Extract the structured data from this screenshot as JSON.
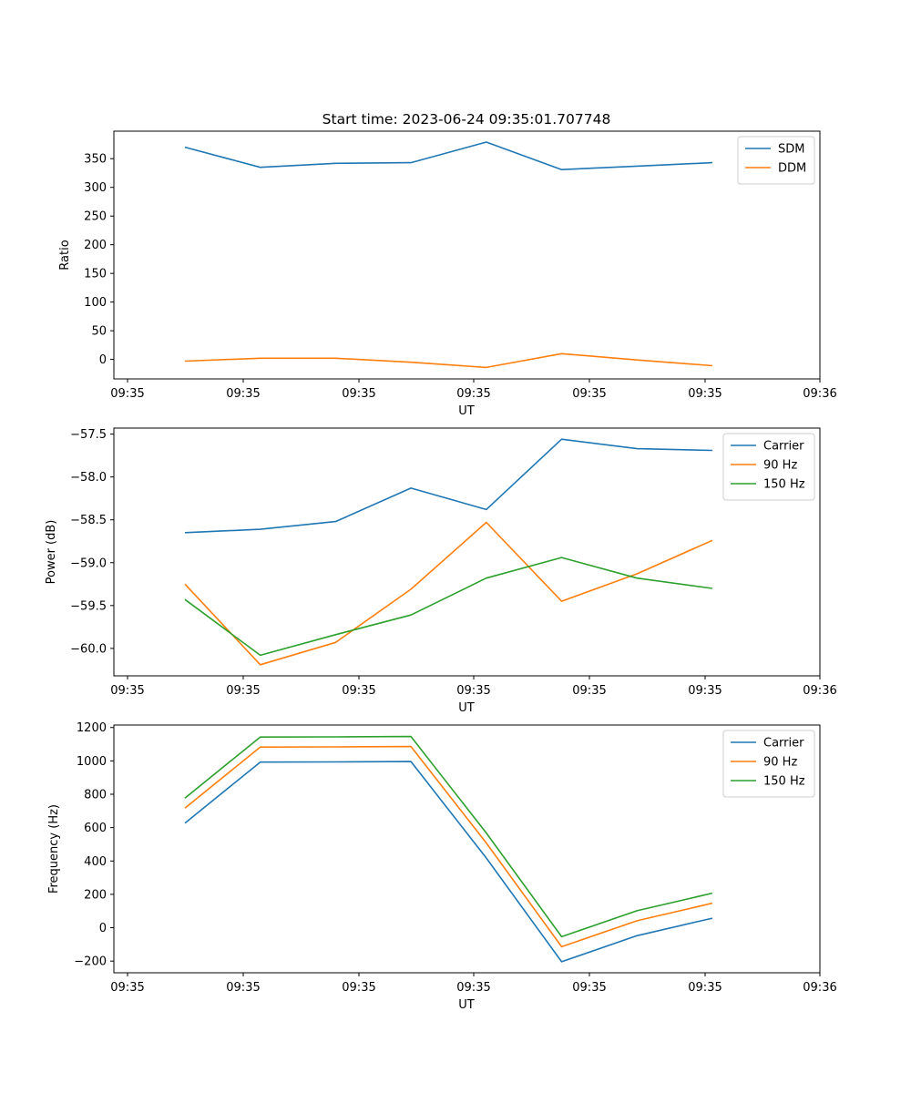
{
  "figure": {
    "title": "Start time: 2023-06-24 09:35:01.707748"
  },
  "chart_data": [
    {
      "type": "line",
      "title": "Start time: 2023-06-24 09:35:01.707748",
      "xlabel": "UT",
      "ylabel": "Ratio",
      "x_tick_labels": [
        "09:35",
        "09:35",
        "09:35",
        "09:35",
        "09:35",
        "09:35",
        "09:36"
      ],
      "x_point_count": 8,
      "ylim": [
        -34,
        398
      ],
      "yticks": [
        0,
        50,
        100,
        150,
        200,
        250,
        300,
        350
      ],
      "legend": "top-right",
      "grid": false,
      "series": [
        {
          "name": "SDM",
          "color": "#1f77b4",
          "values": [
            370,
            335,
            342,
            343,
            379,
            331,
            337,
            343
          ]
        },
        {
          "name": "DDM",
          "color": "#ff7f0e",
          "values": [
            -3,
            2,
            2,
            -5,
            -14,
            10,
            -1,
            -11
          ]
        }
      ]
    },
    {
      "type": "line",
      "title": "",
      "xlabel": "UT",
      "ylabel": "Power (dB)",
      "x_tick_labels": [
        "09:35",
        "09:35",
        "09:35",
        "09:35",
        "09:35",
        "09:35",
        "09:36"
      ],
      "x_point_count": 8,
      "ylim": [
        -60.32,
        -57.43
      ],
      "yticks": [
        -60.0,
        -59.5,
        -59.0,
        -58.5,
        -58.0,
        -57.5
      ],
      "legend": "top-right",
      "grid": false,
      "series": [
        {
          "name": "Carrier",
          "color": "#1f77b4",
          "values": [
            -58.65,
            -58.61,
            -58.52,
            -58.13,
            -58.38,
            -57.56,
            -57.67,
            -57.69
          ]
        },
        {
          "name": "90 Hz",
          "color": "#ff7f0e",
          "values": [
            -59.25,
            -60.19,
            -59.93,
            -59.31,
            -58.53,
            -59.45,
            -59.13,
            -58.74
          ]
        },
        {
          "name": "150 Hz",
          "color": "#2ca02c",
          "values": [
            -59.43,
            -60.08,
            -59.84,
            -59.61,
            -59.18,
            -58.94,
            -59.18,
            -59.3
          ]
        }
      ]
    },
    {
      "type": "line",
      "title": "",
      "xlabel": "UT",
      "ylabel": "Frequency (Hz)",
      "x_tick_labels": [
        "09:35",
        "09:35",
        "09:35",
        "09:35",
        "09:35",
        "09:35",
        "09:36"
      ],
      "x_point_count": 8,
      "ylim": [
        -270,
        1215
      ],
      "yticks": [
        -200,
        0,
        200,
        400,
        600,
        800,
        1000,
        1200
      ],
      "legend": "top-right",
      "grid": false,
      "series": [
        {
          "name": "Carrier",
          "color": "#1f77b4",
          "values": [
            627,
            993,
            994,
            996,
            418,
            -204,
            -48,
            57
          ]
        },
        {
          "name": "90 Hz",
          "color": "#ff7f0e",
          "values": [
            717,
            1083,
            1084,
            1086,
            508,
            -114,
            42,
            147
          ]
        },
        {
          "name": "150 Hz",
          "color": "#2ca02c",
          "values": [
            777,
            1143,
            1144,
            1146,
            568,
            -54,
            102,
            207
          ]
        }
      ]
    }
  ]
}
